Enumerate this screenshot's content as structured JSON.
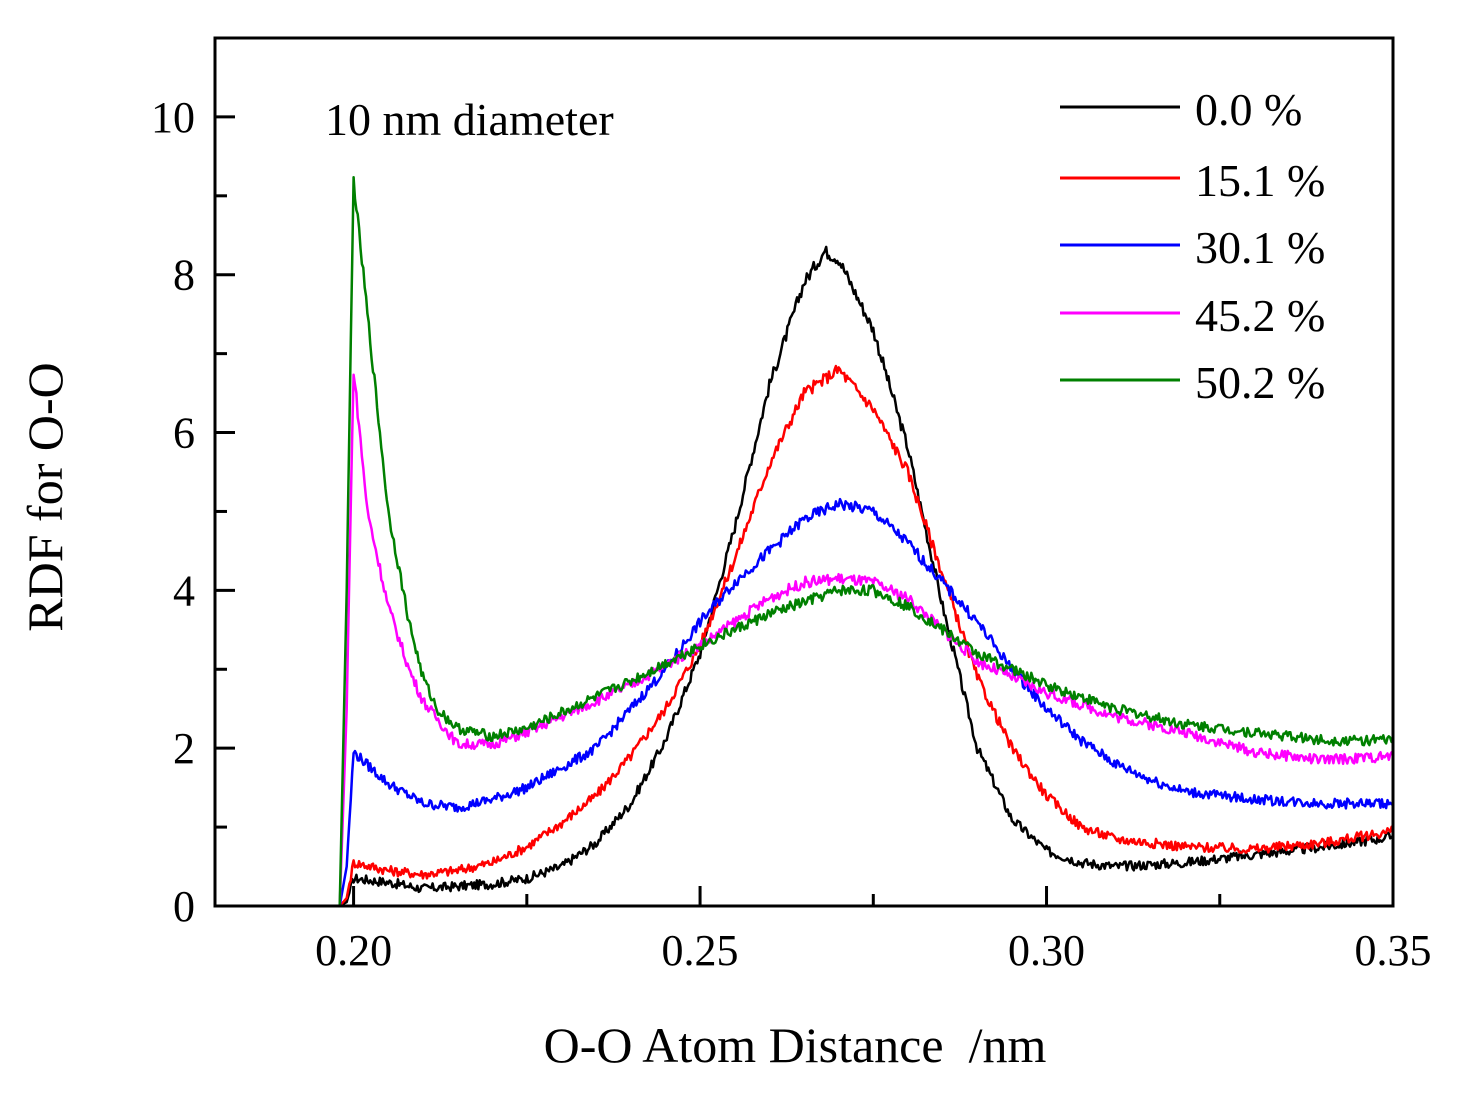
{
  "chart_data": {
    "type": "line",
    "title": "",
    "annotation": "10 nm diameter",
    "xlabel": "O-O Atom Distance  /nm",
    "ylabel": "RDF for O-O",
    "xlim": [
      0.18,
      0.35
    ],
    "ylim": [
      0,
      11
    ],
    "xticks": [
      0.2,
      0.25,
      0.3,
      0.35
    ],
    "xtick_labels": [
      "0.20",
      "0.25",
      "0.30",
      "0.35"
    ],
    "yticks": [
      0,
      2,
      4,
      6,
      8,
      10
    ],
    "ytick_labels": [
      "0",
      "2",
      "4",
      "6",
      "8",
      "10"
    ],
    "grid": false,
    "legend_position": "top-right",
    "series": [
      {
        "name": "0.0 %",
        "color": "#000000",
        "x": [
          0.18,
          0.198,
          0.199,
          0.2,
          0.205,
          0.21,
          0.215,
          0.22,
          0.225,
          0.23,
          0.235,
          0.24,
          0.245,
          0.25,
          0.255,
          0.26,
          0.265,
          0.268,
          0.27,
          0.275,
          0.28,
          0.285,
          0.29,
          0.295,
          0.3,
          0.305,
          0.31,
          0.32,
          0.33,
          0.34,
          0.35
        ],
        "y": [
          0,
          0,
          0.05,
          0.35,
          0.3,
          0.22,
          0.25,
          0.28,
          0.35,
          0.5,
          0.8,
          1.3,
          2.1,
          3.2,
          4.8,
          6.6,
          7.9,
          8.3,
          8.2,
          7.3,
          5.8,
          3.8,
          2.0,
          1.1,
          0.7,
          0.55,
          0.5,
          0.55,
          0.65,
          0.75,
          0.88
        ]
      },
      {
        "name": "15.1 %",
        "color": "#ff0000",
        "x": [
          0.18,
          0.198,
          0.199,
          0.2,
          0.205,
          0.21,
          0.215,
          0.22,
          0.225,
          0.23,
          0.235,
          0.24,
          0.245,
          0.25,
          0.255,
          0.26,
          0.265,
          0.27,
          0.275,
          0.28,
          0.285,
          0.29,
          0.295,
          0.3,
          0.305,
          0.31,
          0.32,
          0.33,
          0.34,
          0.35
        ],
        "y": [
          0,
          0,
          0.1,
          0.55,
          0.45,
          0.4,
          0.45,
          0.55,
          0.75,
          1.05,
          1.4,
          1.9,
          2.5,
          3.3,
          4.4,
          5.6,
          6.5,
          6.8,
          6.3,
          5.5,
          4.2,
          2.9,
          2.0,
          1.4,
          1.0,
          0.85,
          0.75,
          0.72,
          0.8,
          0.95
        ]
      },
      {
        "name": "30.1 %",
        "color": "#0000ff",
        "x": [
          0.18,
          0.198,
          0.199,
          0.2,
          0.205,
          0.21,
          0.215,
          0.22,
          0.225,
          0.23,
          0.235,
          0.24,
          0.245,
          0.25,
          0.255,
          0.26,
          0.265,
          0.27,
          0.275,
          0.28,
          0.285,
          0.29,
          0.295,
          0.3,
          0.305,
          0.31,
          0.315,
          0.32,
          0.33,
          0.34,
          0.35
        ],
        "y": [
          0,
          0,
          0.5,
          1.95,
          1.55,
          1.3,
          1.25,
          1.35,
          1.5,
          1.75,
          2.0,
          2.5,
          3.0,
          3.6,
          4.1,
          4.5,
          4.9,
          5.1,
          5.0,
          4.6,
          4.1,
          3.6,
          3.0,
          2.5,
          2.1,
          1.8,
          1.6,
          1.45,
          1.35,
          1.3,
          1.3
        ]
      },
      {
        "name": "45.2 %",
        "color": "#ff00ff",
        "x": [
          0.18,
          0.198,
          0.199,
          0.2,
          0.202,
          0.205,
          0.208,
          0.21,
          0.215,
          0.22,
          0.225,
          0.23,
          0.24,
          0.25,
          0.26,
          0.265,
          0.27,
          0.275,
          0.28,
          0.285,
          0.29,
          0.295,
          0.3,
          0.31,
          0.32,
          0.33,
          0.34,
          0.35
        ],
        "y": [
          0,
          0,
          2.5,
          6.8,
          5.0,
          3.8,
          3.0,
          2.6,
          2.05,
          2.05,
          2.2,
          2.4,
          2.8,
          3.3,
          3.9,
          4.1,
          4.15,
          4.1,
          3.9,
          3.5,
          3.1,
          2.9,
          2.7,
          2.4,
          2.2,
          1.95,
          1.85,
          1.9
        ]
      },
      {
        "name": "50.2 %",
        "color": "#008000",
        "x": [
          0.18,
          0.198,
          0.199,
          0.2,
          0.202,
          0.205,
          0.208,
          0.21,
          0.212,
          0.215,
          0.22,
          0.225,
          0.23,
          0.24,
          0.25,
          0.26,
          0.27,
          0.275,
          0.28,
          0.285,
          0.29,
          0.295,
          0.3,
          0.31,
          0.32,
          0.33,
          0.34,
          0.35
        ],
        "y": [
          0,
          0,
          4,
          9.2,
          7.5,
          5.0,
          3.6,
          2.9,
          2.5,
          2.25,
          2.15,
          2.25,
          2.45,
          2.85,
          3.3,
          3.7,
          4.0,
          4.0,
          3.8,
          3.5,
          3.2,
          3.0,
          2.8,
          2.5,
          2.3,
          2.2,
          2.1,
          2.1
        ]
      }
    ]
  }
}
